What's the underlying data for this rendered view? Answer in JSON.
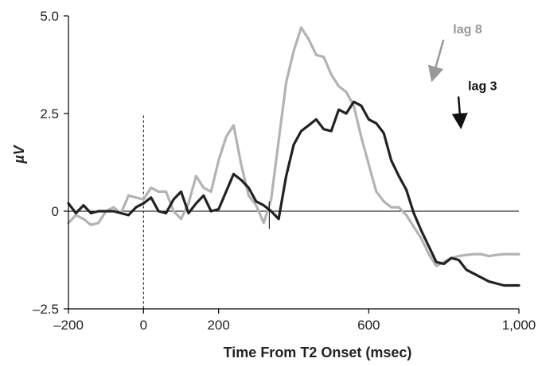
{
  "chart_data": {
    "type": "line",
    "xlabel": "Time From T2 Onset (msec)",
    "ylabel": "µV",
    "xlim": [
      -200,
      1000
    ],
    "ylim": [
      -2.5,
      5.0
    ],
    "x_ticks": [
      -200,
      0,
      200,
      600,
      1000
    ],
    "x_tick_labels": [
      "–200",
      "0",
      "200",
      "600",
      "1,000"
    ],
    "y_ticks": [
      -2.5,
      0,
      2.5,
      5.0
    ],
    "y_tick_labels": [
      "–2.5",
      "0",
      "2.5",
      "5.0"
    ],
    "grid": false,
    "zero_line": true,
    "reference_line_x": 0,
    "series": [
      {
        "name": "lag 8",
        "color": "#b3b3b3",
        "x": [
          -200,
          -180,
          -160,
          -140,
          -120,
          -100,
          -80,
          -60,
          -40,
          -20,
          0,
          20,
          40,
          60,
          80,
          100,
          120,
          140,
          160,
          180,
          200,
          220,
          240,
          260,
          280,
          300,
          320,
          340,
          360,
          380,
          400,
          420,
          440,
          460,
          480,
          500,
          520,
          540,
          560,
          580,
          600,
          620,
          640,
          660,
          680,
          700,
          720,
          740,
          760,
          780,
          800,
          820,
          840,
          860,
          880,
          900,
          920,
          940,
          960,
          980,
          1000
        ],
        "y": [
          -0.3,
          -0.1,
          -0.2,
          -0.35,
          -0.3,
          0.0,
          0.1,
          -0.05,
          0.4,
          0.35,
          0.3,
          0.6,
          0.5,
          0.5,
          0.0,
          -0.2,
          0.2,
          0.9,
          0.6,
          0.5,
          1.3,
          1.9,
          2.2,
          1.2,
          0.4,
          0.15,
          -0.3,
          0.3,
          1.8,
          3.3,
          4.1,
          4.7,
          4.4,
          4.0,
          3.95,
          3.5,
          3.2,
          3.05,
          2.7,
          1.9,
          1.2,
          0.5,
          0.25,
          0.1,
          0.1,
          -0.1,
          -0.4,
          -0.7,
          -1.1,
          -1.4,
          -1.3,
          -1.2,
          -1.15,
          -1.12,
          -1.1,
          -1.1,
          -1.15,
          -1.12,
          -1.1,
          -1.1,
          -1.1
        ]
      },
      {
        "name": "lag 3",
        "color": "#222222",
        "x": [
          -200,
          -180,
          -160,
          -140,
          -120,
          -100,
          -80,
          -60,
          -40,
          -20,
          0,
          20,
          40,
          60,
          80,
          100,
          120,
          140,
          160,
          180,
          200,
          220,
          240,
          260,
          280,
          300,
          320,
          340,
          360,
          380,
          400,
          420,
          440,
          460,
          480,
          500,
          520,
          540,
          560,
          580,
          600,
          620,
          640,
          660,
          680,
          700,
          720,
          740,
          760,
          780,
          800,
          820,
          840,
          860,
          880,
          900,
          920,
          940,
          960,
          980,
          1000
        ],
        "y": [
          0.2,
          -0.05,
          0.15,
          -0.05,
          0.0,
          0.0,
          0.0,
          -0.05,
          -0.1,
          0.1,
          0.2,
          0.35,
          0.0,
          -0.05,
          0.3,
          0.5,
          -0.05,
          0.2,
          0.4,
          0.0,
          0.05,
          0.5,
          0.95,
          0.8,
          0.6,
          0.25,
          0.15,
          0.0,
          -0.2,
          0.9,
          1.7,
          2.05,
          2.2,
          2.35,
          2.1,
          2.05,
          2.6,
          2.5,
          2.8,
          2.7,
          2.35,
          2.25,
          2.0,
          1.3,
          0.9,
          0.55,
          -0.05,
          -0.5,
          -0.9,
          -1.3,
          -1.35,
          -1.2,
          -1.25,
          -1.5,
          -1.6,
          -1.7,
          -1.8,
          -1.85,
          -1.9,
          -1.9,
          -1.9
        ]
      }
    ],
    "annotations": [
      {
        "text": "lag 8",
        "color": "#999999",
        "x": 850,
        "y": 4.55,
        "arrow_to": [
          770,
          3.4
        ]
      },
      {
        "text": "lag 3",
        "color": "#111111",
        "x": 890,
        "y": 3.1,
        "arrow_to": [
          845,
          2.2
        ]
      }
    ]
  }
}
